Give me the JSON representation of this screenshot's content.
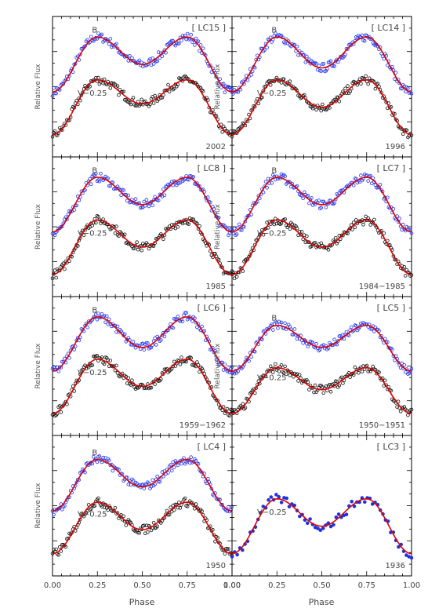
{
  "figure": {
    "x_axis_label": "Phase",
    "y_axis_label": "Relative Flux",
    "x_tick_labels": [
      "0.00",
      "0.25",
      "0.50",
      "0.75",
      "1.00"
    ],
    "curve_labels": {
      "b": "B",
      "v": "V−0.25"
    }
  },
  "colors": {
    "model_curve": "#dd0000",
    "b_points": "#2233ee",
    "v_points": "#111111",
    "lc3_points": "#2233dd"
  },
  "chart_data": [
    {
      "type": "line",
      "panel": "LC15",
      "label": "[ LC15 ]",
      "epoch": "2002",
      "xlabel": "Phase",
      "ylabel": "Relative Flux",
      "xlim": [
        0,
        1
      ],
      "series": [
        {
          "name": "B",
          "x": [
            0.0,
            0.25,
            0.5,
            0.75,
            1.0
          ],
          "y": [
            0.68,
            1.0,
            0.84,
            1.0,
            0.68
          ]
        },
        {
          "name": "V−0.25",
          "x": [
            0.0,
            0.25,
            0.5,
            0.75,
            1.0
          ],
          "y": [
            0.43,
            0.75,
            0.61,
            0.75,
            0.43
          ]
        }
      ]
    },
    {
      "type": "line",
      "panel": "LC14",
      "label": "[ LC14 ]",
      "epoch": "1996",
      "xlabel": "Phase",
      "ylabel": "Relative Flux",
      "xlim": [
        0,
        1
      ],
      "series": [
        {
          "name": "B",
          "x": [
            0.0,
            0.25,
            0.5,
            0.75,
            1.0
          ],
          "y": [
            0.68,
            1.0,
            0.82,
            1.0,
            0.68
          ]
        },
        {
          "name": "V−0.25",
          "x": [
            0.0,
            0.25,
            0.5,
            0.75,
            1.0
          ],
          "y": [
            0.43,
            0.75,
            0.59,
            0.75,
            0.43
          ]
        }
      ]
    },
    {
      "type": "line",
      "panel": "LC8",
      "label": "[ LC8 ]",
      "epoch": "1985",
      "xlabel": "Phase",
      "ylabel": "Relative Flux",
      "xlim": [
        0,
        1
      ],
      "series": [
        {
          "name": "B",
          "x": [
            0.0,
            0.25,
            0.5,
            0.75,
            1.0
          ],
          "y": [
            0.68,
            1.0,
            0.84,
            1.0,
            0.68
          ]
        },
        {
          "name": "V−0.25",
          "x": [
            0.0,
            0.25,
            0.5,
            0.75,
            1.0
          ],
          "y": [
            0.43,
            0.75,
            0.59,
            0.75,
            0.43
          ]
        }
      ]
    },
    {
      "type": "line",
      "panel": "LC7",
      "label": "[ LC7 ]",
      "epoch": "1984−1985",
      "xlabel": "Phase",
      "ylabel": "Relative Flux",
      "xlim": [
        0,
        1
      ],
      "series": [
        {
          "name": "B",
          "x": [
            0.0,
            0.25,
            0.5,
            0.75,
            1.0
          ],
          "y": [
            0.68,
            1.0,
            0.84,
            1.0,
            0.68
          ]
        },
        {
          "name": "V−0.25",
          "x": [
            0.0,
            0.25,
            0.5,
            0.75,
            1.0
          ],
          "y": [
            0.43,
            0.75,
            0.59,
            0.75,
            0.43
          ]
        }
      ]
    },
    {
      "type": "line",
      "panel": "LC6",
      "label": "[ LC6 ]",
      "epoch": "1959−1962",
      "xlabel": "Phase",
      "ylabel": "Relative Flux",
      "xlim": [
        0,
        1
      ],
      "series": [
        {
          "name": "B",
          "x": [
            0.0,
            0.25,
            0.5,
            0.75,
            1.0
          ],
          "y": [
            0.68,
            1.0,
            0.82,
            1.0,
            0.68
          ]
        },
        {
          "name": "V−0.25",
          "x": [
            0.0,
            0.25,
            0.5,
            0.75,
            1.0
          ],
          "y": [
            0.43,
            0.75,
            0.59,
            0.75,
            0.43
          ]
        }
      ]
    },
    {
      "type": "line",
      "panel": "LC5",
      "label": "[ LC5 ]",
      "epoch": "1950−1951",
      "xlabel": "Phase",
      "ylabel": "Relative Flux",
      "xlim": [
        0,
        1
      ],
      "series": [
        {
          "name": "B",
          "x": [
            0.0,
            0.25,
            0.5,
            0.75,
            1.0
          ],
          "y": [
            0.68,
            0.95,
            0.82,
            0.95,
            0.68
          ]
        },
        {
          "name": "V−0.25",
          "x": [
            0.0,
            0.25,
            0.5,
            0.75,
            1.0
          ],
          "y": [
            0.43,
            0.7,
            0.57,
            0.7,
            0.43
          ]
        }
      ]
    },
    {
      "type": "line",
      "panel": "LC4",
      "label": "[ LC4 ]",
      "epoch": "1950",
      "xlabel": "Phase",
      "ylabel": "Relative Flux",
      "xlim": [
        0,
        1
      ],
      "series": [
        {
          "name": "B",
          "x": [
            0.0,
            0.25,
            0.5,
            0.75,
            1.0
          ],
          "y": [
            0.68,
            0.98,
            0.82,
            0.98,
            0.68
          ]
        },
        {
          "name": "V−0.25",
          "x": [
            0.0,
            0.25,
            0.5,
            0.75,
            1.0
          ],
          "y": [
            0.43,
            0.73,
            0.57,
            0.73,
            0.43
          ]
        }
      ]
    },
    {
      "type": "line",
      "panel": "LC3",
      "label": "[ LC3 ]",
      "epoch": "1936",
      "xlabel": "Phase",
      "ylabel": "",
      "xlim": [
        0,
        1
      ],
      "series": [
        {
          "name": "V−0.25",
          "x": [
            0.0,
            0.25,
            0.5,
            0.75,
            1.0
          ],
          "y": [
            0.43,
            0.75,
            0.59,
            0.75,
            0.43
          ]
        }
      ]
    }
  ]
}
